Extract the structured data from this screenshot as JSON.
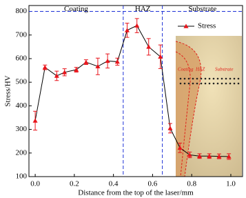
{
  "chart_data": {
    "type": "line",
    "x_label": "Distance from the top of the laser/mm",
    "y_label": "Stress/HV",
    "regions": [
      "Coating",
      "HAZ",
      "Substrate"
    ],
    "region_bounds": [
      0.45,
      0.65
    ],
    "reference_line": 800,
    "inset_labels": [
      "Coating",
      "HAZ",
      "Substrate"
    ],
    "x": [
      0,
      0.05,
      0.11,
      0.15,
      0.21,
      0.26,
      0.32,
      0.37,
      0.42,
      0.47,
      0.52,
      0.58,
      0.64,
      0.69,
      0.74,
      0.79,
      0.84,
      0.89,
      0.94,
      0.99
    ],
    "series": [
      {
        "name": "Stress",
        "color": "#e8141b",
        "values": [
          337,
          563,
          527,
          542,
          553,
          585,
          567,
          590,
          587,
          720,
          740,
          650,
          608,
          305,
          222,
          192,
          187,
          187,
          186,
          185
        ],
        "errors": [
          40,
          10,
          20,
          15,
          10,
          10,
          35,
          30,
          15,
          30,
          30,
          35,
          50,
          20,
          20,
          12,
          10,
          10,
          10,
          12
        ]
      }
    ],
    "xlim": [
      -0.032,
      1.06
    ],
    "ylim": [
      100,
      825
    ],
    "xticks": [
      {
        "value": 0,
        "label": "0.0"
      },
      {
        "value": 0.2,
        "label": "0.2"
      },
      {
        "value": 0.4,
        "label": "0.4"
      },
      {
        "value": 0.6,
        "label": "0.6"
      },
      {
        "value": 0.8,
        "label": "0.8"
      },
      {
        "value": 1,
        "label": "1.0"
      }
    ],
    "yticks": [
      100,
      200,
      300,
      400,
      500,
      600,
      700,
      800
    ]
  }
}
